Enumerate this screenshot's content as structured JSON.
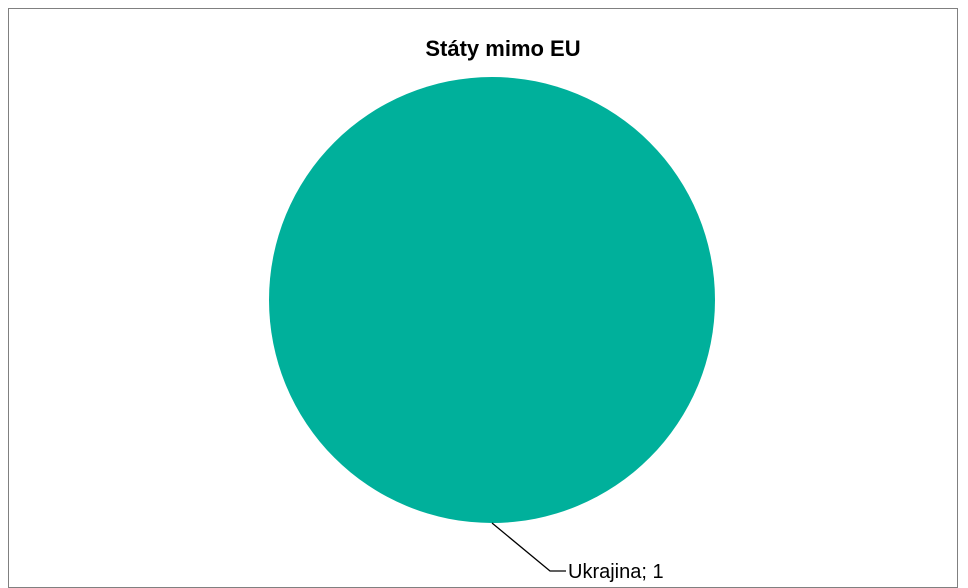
{
  "chart_data": {
    "type": "pie",
    "title": "Státy mimo EU",
    "categories": [
      "Ukrajina"
    ],
    "values": [
      1
    ],
    "data_labels": [
      "Ukrajina; 1"
    ],
    "colors": [
      "#00b09b"
    ],
    "legend": "none"
  }
}
